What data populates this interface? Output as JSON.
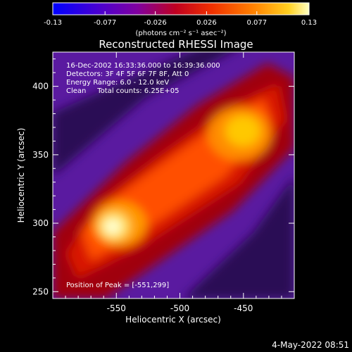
{
  "chart_data": {
    "type": "heatmap",
    "title": "Reconstructed RHESSI Image",
    "colorbar": {
      "ticks": [
        -0.13,
        -0.077,
        -0.026,
        0.026,
        0.077,
        0.13
      ],
      "tick_labels": [
        "-0.13",
        "-0.077",
        "-0.026",
        "0.026",
        "0.077",
        "0.13"
      ],
      "unit_label": "(photons cm⁻² s⁻¹ asec⁻²)",
      "range": [
        -0.13,
        0.13
      ]
    },
    "info_lines": [
      "16-Dec-2002 16:33:36.000 to 16:39:36.000",
      "Detectors: 3F 4F 5F 6F 7F 8F, Att 0",
      "Energy Range: 6.0 - 12.0 keV",
      "Clean     Total counts: 6.25E+05"
    ],
    "peak_label": "Position of Peak = [-551,299]",
    "peak": {
      "x": -551,
      "y": 299
    },
    "secondary_peak": {
      "x": -460,
      "y": 370
    },
    "xlabel": "Heliocentric X (arcsec)",
    "ylabel": "Heliocentric Y (arcsec)",
    "xlim": [
      -600,
      -410
    ],
    "ylim": [
      245,
      425
    ],
    "x_ticks": [
      -550,
      -500,
      -450
    ],
    "x_tick_labels": [
      "-550",
      "-500",
      "-450"
    ],
    "y_ticks": [
      250,
      300,
      350,
      400
    ],
    "y_tick_labels": [
      "250",
      "300",
      "350",
      "400"
    ],
    "colormap": [
      "#0000ff",
      "#5a00c0",
      "#8a0090",
      "#b00010",
      "#e02000",
      "#ff6000",
      "#ffb000",
      "#ffff80"
    ]
  },
  "footer": {
    "date": "4-May-2022 08:51"
  }
}
